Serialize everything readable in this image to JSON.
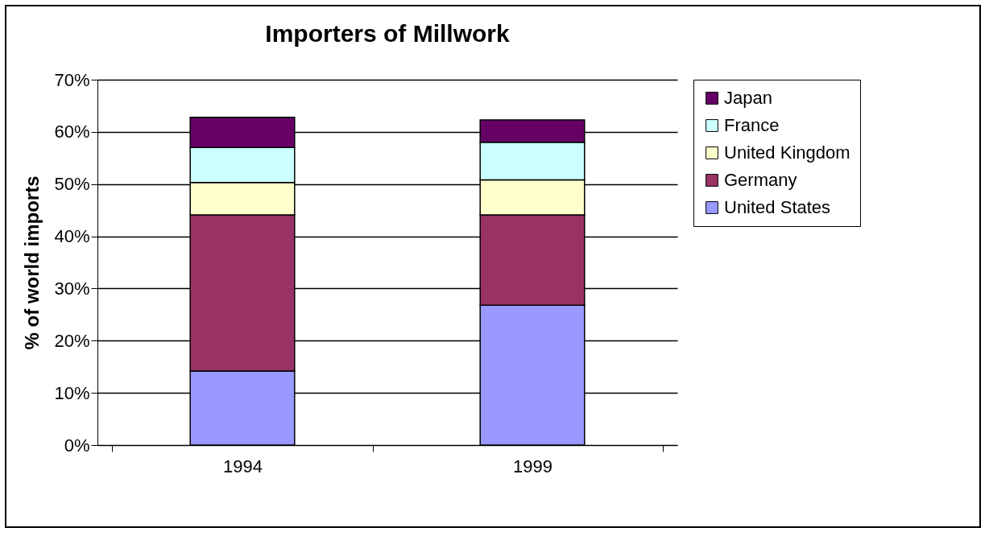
{
  "chart_data": {
    "type": "bar",
    "title": "Importers of Millwork",
    "ylabel": "% of world imports",
    "categories": [
      "1994",
      "1999"
    ],
    "stacked": true,
    "grid": "y",
    "legend": "right",
    "ylim": [
      0,
      70
    ],
    "yticks": [
      {
        "value": 0,
        "label": "0%"
      },
      {
        "value": 10,
        "label": "10%"
      },
      {
        "value": 20,
        "label": "20%"
      },
      {
        "value": 30,
        "label": "30%"
      },
      {
        "value": 40,
        "label": "40%"
      },
      {
        "value": 50,
        "label": "50%"
      },
      {
        "value": 60,
        "label": "60%"
      },
      {
        "value": 70,
        "label": "70%"
      }
    ],
    "series": [
      {
        "name": "United States",
        "color": "#9999ff",
        "values": [
          14.2,
          26.8
        ]
      },
      {
        "name": "Germany",
        "color": "#993366",
        "values": [
          29.9,
          17.3
        ]
      },
      {
        "name": "United Kingdom",
        "color": "#ffffcc",
        "values": [
          6.2,
          6.7
        ]
      },
      {
        "name": "France",
        "color": "#ccffff",
        "values": [
          6.7,
          7.2
        ]
      },
      {
        "name": "Japan",
        "color": "#660066",
        "values": [
          5.8,
          4.3
        ]
      }
    ]
  }
}
